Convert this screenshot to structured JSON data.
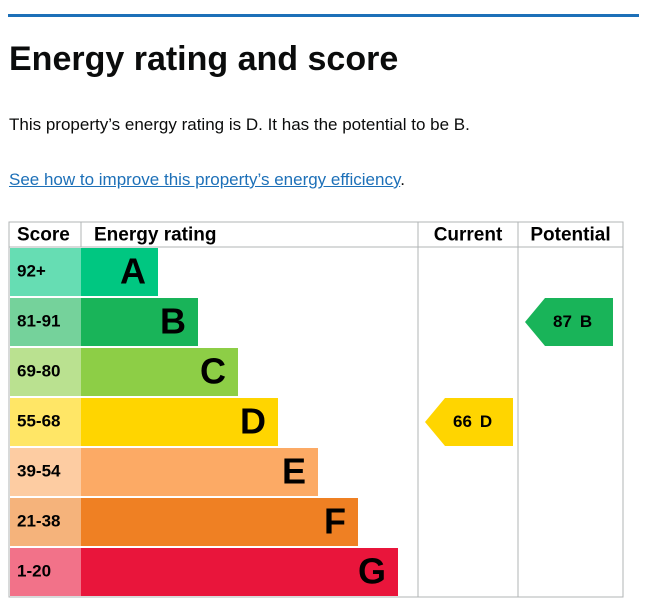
{
  "header": {
    "title": "Energy rating and score"
  },
  "summary": "This property’s energy rating is D. It has the potential to be B.",
  "link": {
    "text": "See how to improve this property’s energy efficiency",
    "suffix": "."
  },
  "table": {
    "columns": [
      "Score",
      "Energy rating",
      "Current",
      "Potential"
    ],
    "rows": [
      {
        "score": "92+",
        "letter": "A",
        "color": "#00c781"
      },
      {
        "score": "81-91",
        "letter": "B",
        "color": "#19b459"
      },
      {
        "score": "69-80",
        "letter": "C",
        "color": "#8dce46"
      },
      {
        "score": "55-68",
        "letter": "D",
        "color": "#ffd500"
      },
      {
        "score": "39-54",
        "letter": "E",
        "color": "#fcaa65"
      },
      {
        "score": "21-38",
        "letter": "F",
        "color": "#ef8023"
      },
      {
        "score": "1-20",
        "letter": "G",
        "color": "#e9153b"
      }
    ],
    "current": {
      "score": 66,
      "letter": "D"
    },
    "potential": {
      "score": 87,
      "letter": "B"
    }
  }
}
